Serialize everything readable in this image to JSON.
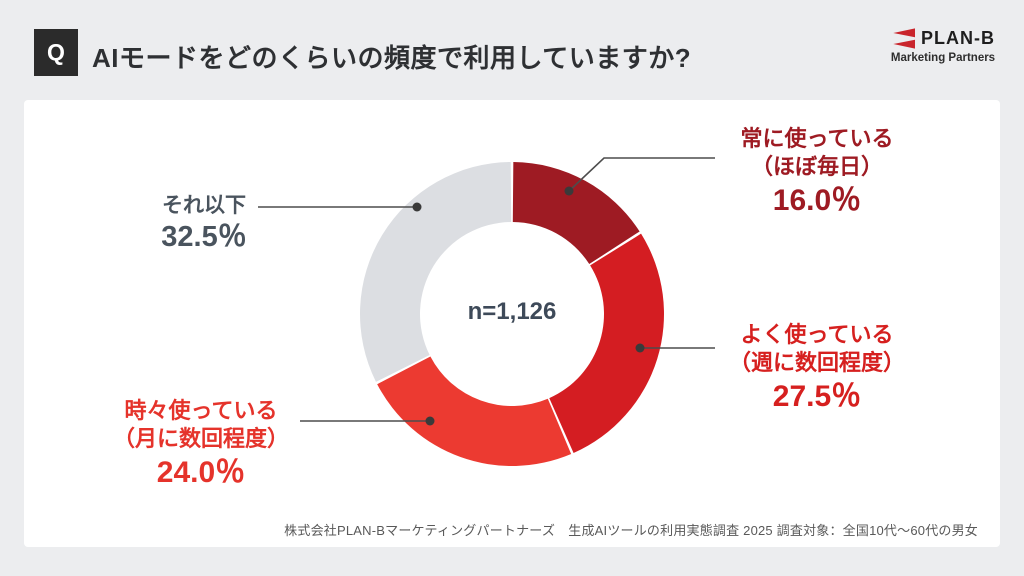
{
  "header": {
    "q_label": "Q",
    "title": "AIモードをどのくらいの頻度で利用していますか?",
    "logo_text": "PLAN-B",
    "logo_subtext": "Marketing Partners"
  },
  "chart_data": {
    "type": "pie",
    "subtype": "donut",
    "title": "AIモードをどのくらいの頻度で利用していますか?",
    "center_label": "n=1,126",
    "start_angle_deg": 0,
    "direction": "clockwise",
    "segments": [
      {
        "name": "常に使っている",
        "sub": "（ほぼ毎日）",
        "value": 16.0,
        "pct_label": "16.0％",
        "color": "#9E1B23",
        "label_color": "#9E1B23"
      },
      {
        "name": "よく使っている",
        "sub": "（週に数回程度）",
        "value": 27.5,
        "pct_label": "27.5％",
        "color": "#D41D22",
        "label_color": "#D6201F"
      },
      {
        "name": "時々使っている",
        "sub": "（月に数回程度）",
        "value": 24.0,
        "pct_label": "24.0％",
        "color": "#EC3A31",
        "label_color": "#E5332B"
      },
      {
        "name": "それ以下",
        "sub": "",
        "value": 32.5,
        "pct_label": "32.5％",
        "color": "#DCDEE2",
        "label_color": "#4A545E"
      }
    ]
  },
  "footer": {
    "note": "株式会社PLAN-Bマーケティングパートナーズ　生成AIツールの利用実態調査 2025 調査対象：全国10代～60代の男女"
  },
  "colors": {
    "brand_red": "#C9252C",
    "badge_bg": "#2B2B2B",
    "page_bg": "#ECEDEF",
    "leader_line": "#4D4D4D",
    "center_text": "#3E4A59"
  }
}
